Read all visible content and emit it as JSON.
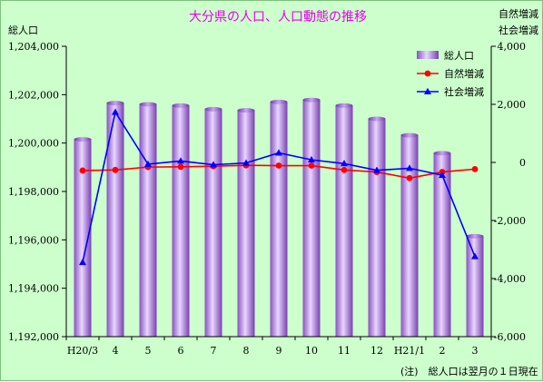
{
  "chart_data": {
    "type": "bar",
    "title": "大分県の人口、人口動態の推移",
    "ylabel_left": "総人口",
    "ylabel_right": [
      "自然増減",
      "社会増減"
    ],
    "footnote": "(注)　総人口は翌月の１日現在",
    "categories": [
      "H20/3",
      "4",
      "5",
      "6",
      "7",
      "8",
      "9",
      "10",
      "11",
      "12",
      "H21/1",
      "2",
      "3"
    ],
    "left_axis": {
      "ylim": [
        1192000,
        1204000
      ],
      "ticks": [
        "1,192,000",
        "1,194,000",
        "1,196,000",
        "1,198,000",
        "1,200,000",
        "1,202,000",
        "1,204,000"
      ]
    },
    "right_axis": {
      "ylim": [
        -6000,
        4000
      ],
      "ticks": [
        "-6,000",
        "-4,000",
        "-2,000",
        "0",
        "2,000",
        "4,000"
      ]
    },
    "series": [
      {
        "name": "総人口",
        "type": "bar",
        "axis": "left",
        "color": "#9966cc",
        "values": [
          1200150,
          1201650,
          1201600,
          1201550,
          1201400,
          1201350,
          1201700,
          1201780,
          1201550,
          1201000,
          1200320,
          1199580,
          1196150
        ]
      },
      {
        "name": "自然増減",
        "type": "line",
        "axis": "right",
        "color": "#ff0000",
        "marker": "circle",
        "values": [
          -280,
          -260,
          -160,
          -150,
          -130,
          -100,
          -110,
          -110,
          -260,
          -330,
          -540,
          -330,
          -230
        ]
      },
      {
        "name": "社会増減",
        "type": "line",
        "axis": "right",
        "color": "#0000ff",
        "marker": "triangle",
        "values": [
          -3440,
          1730,
          -60,
          50,
          -80,
          -20,
          330,
          90,
          -40,
          -270,
          -200,
          -440,
          -3240
        ]
      }
    ],
    "legend": "top-right",
    "grid": false
  }
}
